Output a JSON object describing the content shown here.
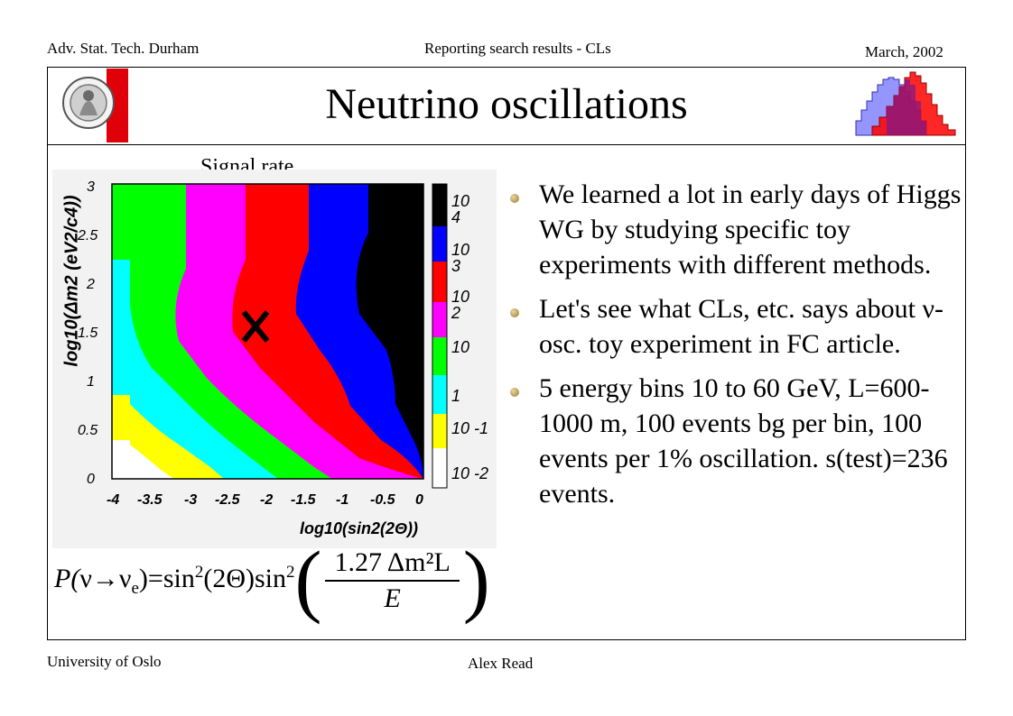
{
  "header": {
    "left": "Adv. Stat. Tech. Durham",
    "center": "Reporting search results - CLs",
    "right": "March, 2002"
  },
  "slide": {
    "title": "Neutrino oscillations"
  },
  "plot": {
    "label": "Signal rate",
    "xlabel": "log10(sin2(2Θ))",
    "ylabel": "log10(Δm2 (eV2/c4))",
    "x_ticks": [
      "-4",
      "-3.5",
      "-3",
      "-2.5",
      "-2",
      "-1.5",
      "-1",
      "-0.5",
      "0"
    ],
    "y_ticks": [
      "3",
      "2.5",
      "2",
      "1.5",
      "1",
      "0.5",
      "0"
    ],
    "colorbar": [
      "10 4",
      "10 3",
      "10 2",
      "10",
      "1",
      "10 -1",
      "10 -2"
    ],
    "colors": [
      "#ffffff",
      "#ffff00",
      "#00ffff",
      "#00ff00",
      "#ff00ff",
      "#ff0000",
      "#0000ff",
      "#000000"
    ],
    "marker": "×"
  },
  "formula": {
    "p": "P(",
    "from": "ν",
    "arrow": "→",
    "to": "ν",
    "to_sub": "e",
    "eq": ")=sin",
    "sq": "2",
    "theta_part": "(2Θ)sin",
    "sq2": "2",
    "num": "1.27 Δm²L",
    "den": "E"
  },
  "bullets": [
    "We learned a lot in early days of Higgs WG by studying specific toy experiments with different methods.",
    "Let's see what CLs, etc. says about ν-osc. toy experiment in FC article.",
    "5 energy bins 10 to 60 GeV, L=600-1000 m, 100 events bg per bin, 100 events per 1% oscillation.  s(test)=236 events."
  ],
  "footer": {
    "left": "University of Oslo",
    "center": "Alex Read"
  }
}
